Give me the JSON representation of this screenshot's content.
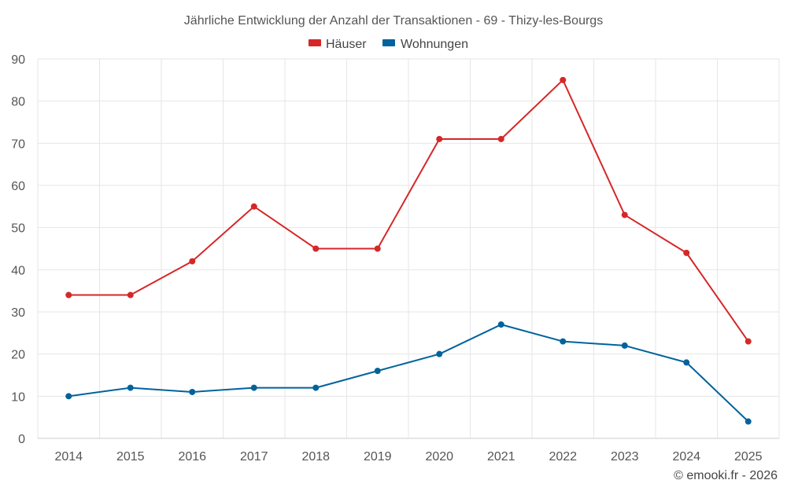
{
  "chart_data": {
    "type": "line",
    "title": "Jährliche Entwicklung der Anzahl der Transaktionen - 69 - Thizy-les-Bourgs",
    "categories": [
      "2014",
      "2015",
      "2016",
      "2017",
      "2018",
      "2019",
      "2020",
      "2021",
      "2022",
      "2023",
      "2024",
      "2025"
    ],
    "series": [
      {
        "name": "Häuser",
        "color": "#d62728",
        "values": [
          34,
          34,
          42,
          55,
          45,
          45,
          71,
          71,
          85,
          53,
          44,
          23
        ]
      },
      {
        "name": "Wohnungen",
        "color": "#00639c",
        "values": [
          10,
          12,
          11,
          12,
          12,
          16,
          20,
          27,
          23,
          22,
          18,
          4
        ]
      }
    ],
    "ylim": [
      0,
      90
    ],
    "yticks": [
      0,
      10,
      20,
      30,
      40,
      50,
      60,
      70,
      80,
      90
    ],
    "grid": true,
    "legend_position": "top-center",
    "xlabel": "",
    "ylabel": ""
  },
  "credit": "© emooki.fr - 2026"
}
